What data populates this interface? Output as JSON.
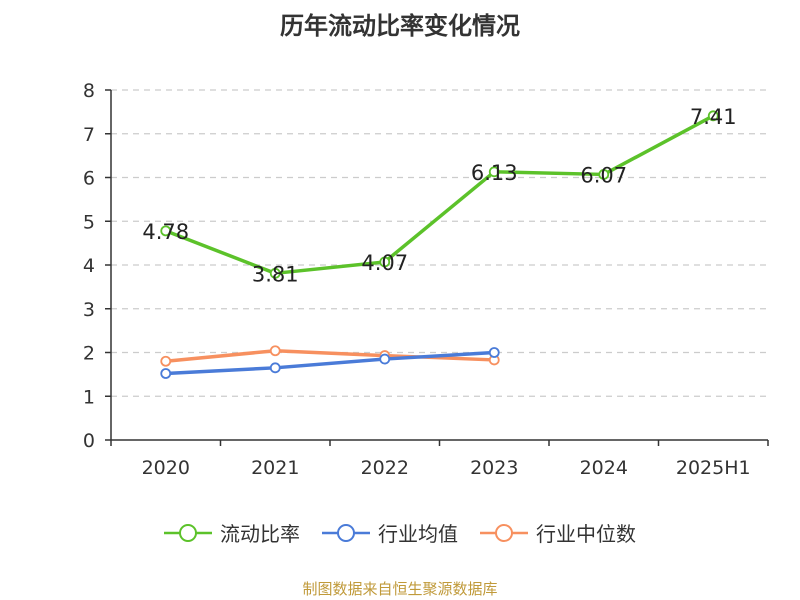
{
  "chart_data": {
    "type": "line",
    "title": "历年流动比率变化情况",
    "categories": [
      "2020",
      "2021",
      "2022",
      "2023",
      "2024",
      "2025H1"
    ],
    "ylim": [
      0,
      8
    ],
    "yticks": [
      "0",
      "1",
      "2",
      "3",
      "4",
      "5",
      "6",
      "7",
      "8"
    ],
    "grid": true,
    "legend_position": "bottom",
    "series": [
      {
        "name": "流动比率",
        "color": "#5cc22a",
        "values": [
          4.78,
          3.81,
          4.07,
          6.13,
          6.07,
          7.41
        ],
        "labels": [
          "4.78",
          "3.81",
          "4.07",
          "6.13",
          "6.07",
          "7.41"
        ]
      },
      {
        "name": "行业均值",
        "color": "#4a7bd8",
        "values": [
          1.52,
          1.65,
          1.85,
          2.0,
          null,
          null
        ]
      },
      {
        "name": "行业中位数",
        "color": "#f7905f",
        "values": [
          1.8,
          2.04,
          1.93,
          1.83,
          null,
          null
        ]
      }
    ]
  },
  "footer": "制图数据来自恒生聚源数据库"
}
